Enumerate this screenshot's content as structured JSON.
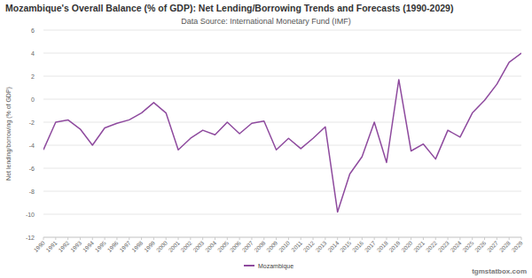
{
  "chart_data": {
    "type": "line",
    "title": "Mozambique's Overall Balance (% of GDP): Net Lending/Borrowing Trends and Forecasts (1990-2029)",
    "subtitle": "Data Source: International Monetary Fund (IMF)",
    "y_label": "Net lending/borrowing (% of GDP)",
    "annotations": [
      "tgmstatbox.com"
    ],
    "categories": [
      "1990",
      "1991",
      "1992",
      "1993",
      "1994",
      "1995",
      "1996",
      "1997",
      "1998",
      "1999",
      "2000",
      "2001",
      "2002",
      "2003",
      "2004",
      "2005",
      "2006",
      "2007",
      "2008",
      "2009",
      "2010",
      "2011",
      "2012",
      "2013",
      "2014",
      "2015",
      "2016",
      "2017",
      "2018",
      "2019",
      "2020",
      "2021",
      "2022",
      "2023",
      "2024",
      "2025",
      "2026",
      "2027",
      "2028",
      "2029"
    ],
    "series": [
      {
        "name": "Mozambique",
        "color": "#8e4a9e",
        "values": [
          -4.4,
          -2.0,
          -1.8,
          -2.6,
          -4.0,
          -2.5,
          -2.1,
          -1.8,
          -1.2,
          -0.3,
          -1.2,
          -4.4,
          -3.4,
          -2.7,
          -3.1,
          -2.0,
          -3.0,
          -2.1,
          -1.9,
          -4.4,
          -3.4,
          -4.3,
          -3.4,
          -2.4,
          -9.8,
          -6.5,
          -5.0,
          -2.0,
          -5.5,
          1.7,
          -4.5,
          -3.9,
          -5.2,
          -2.7,
          -3.3,
          -1.2,
          -0.1,
          1.3,
          3.2,
          4.0
        ]
      }
    ],
    "ylim": [
      -12,
      6
    ],
    "yticks": [
      -12,
      -10,
      -8,
      -6,
      -4,
      -2,
      0,
      2,
      4,
      6
    ],
    "grid": true,
    "legend": "bottom"
  }
}
